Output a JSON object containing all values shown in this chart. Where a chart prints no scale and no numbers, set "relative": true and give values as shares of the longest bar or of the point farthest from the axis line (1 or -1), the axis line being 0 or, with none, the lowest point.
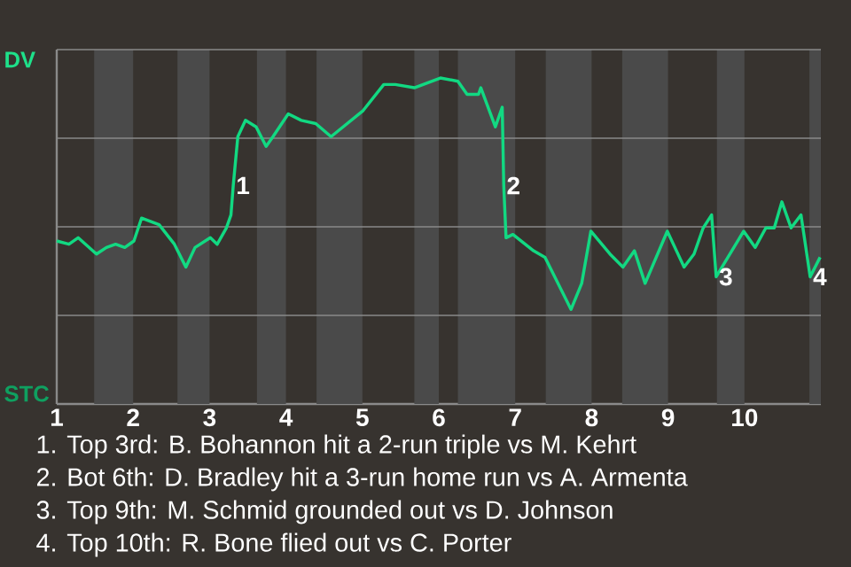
{
  "chart_data": {
    "type": "line",
    "relative": true,
    "x": [
      1.0,
      1.16,
      1.28,
      1.52,
      1.65,
      1.77,
      1.89,
      2.01,
      2.11,
      2.34,
      2.54,
      2.69,
      2.81,
      3.01,
      3.1,
      3.22,
      3.28,
      3.31,
      3.37,
      3.47,
      3.61,
      3.74,
      3.83,
      4.03,
      4.2,
      4.39,
      4.59,
      5.01,
      5.28,
      5.43,
      5.68,
      6.02,
      6.25,
      6.37,
      6.52,
      6.55,
      6.74,
      6.83,
      6.85,
      6.88,
      6.97,
      7.24,
      7.39,
      7.73,
      7.87,
      7.99,
      8.24,
      8.41,
      8.56,
      8.7,
      8.99,
      9.21,
      9.34,
      9.46,
      9.57,
      9.63,
      9.99,
      10.14,
      10.28,
      10.39,
      10.49,
      10.61,
      10.74,
      10.86,
      10.99
    ],
    "series": [
      {
        "color": "#12d982",
        "values": [
          0.5,
          0.49,
          0.51,
          0.46,
          0.48,
          0.49,
          0.48,
          0.5,
          0.57,
          0.55,
          0.49,
          0.42,
          0.48,
          0.51,
          0.49,
          0.54,
          0.58,
          0.67,
          0.82,
          0.87,
          0.85,
          0.79,
          0.82,
          0.89,
          0.87,
          0.86,
          0.82,
          0.9,
          0.98,
          0.98,
          0.97,
          1,
          0.99,
          0.95,
          0.95,
          0.97,
          0.85,
          0.91,
          0.67,
          0.51,
          0.52,
          0.47,
          0.45,
          0.29,
          0.37,
          0.53,
          0.46,
          0.42,
          0.47,
          0.37,
          0.53,
          0.42,
          0.46,
          0.54,
          0.58,
          0.39,
          0.53,
          0.48,
          0.54,
          0.54,
          0.62,
          0.54,
          0.58,
          0.39,
          0.45
        ]
      }
    ],
    "xlim": [
      1,
      11
    ],
    "xticks": [
      1,
      2,
      3,
      4,
      5,
      6,
      7,
      8,
      9,
      10
    ],
    "grid": "y",
    "bands": [
      {
        "axis": "x",
        "from": 1.49,
        "to": 2,
        "color": "#4a4a4a"
      },
      {
        "axis": "x",
        "from": 2.58,
        "to": 3,
        "color": "#4a4a4a"
      },
      {
        "axis": "x",
        "from": 3.62,
        "to": 4,
        "color": "#4a4a4a"
      },
      {
        "axis": "x",
        "from": 4.4,
        "to": 5,
        "color": "#4a4a4a"
      },
      {
        "axis": "x",
        "from": 5.68,
        "to": 6,
        "color": "#4a4a4a"
      },
      {
        "axis": "x",
        "from": 6.25,
        "to": 7,
        "color": "#4a4a4a"
      },
      {
        "axis": "x",
        "from": 7.4,
        "to": 8,
        "color": "#4a4a4a"
      },
      {
        "axis": "x",
        "from": 8.4,
        "to": 9,
        "color": "#4a4a4a"
      },
      {
        "axis": "x",
        "from": 9.64,
        "to": 10,
        "color": "#4a4a4a"
      },
      {
        "axis": "x",
        "from": 10.85,
        "to": 11,
        "color": "#4a4a4a"
      }
    ],
    "annotations": [
      "DV",
      "STC",
      {
        "text": "1",
        "x": 3.31,
        "y": 0.67
      },
      {
        "text": "2",
        "x": 6.85,
        "y": 0.67
      },
      {
        "text": "3",
        "x": 9.63,
        "y": 0.39
      },
      {
        "text": "4",
        "x": 10.86,
        "y": 0.39
      },
      "1. Top 3rd: B. Bohannon hit a 2-run triple vs M. Kehrt",
      "2. Bot 6th: D. Bradley hit a 3-run home run vs A. Armenta",
      "3. Top 9th: M. Schmid grounded out vs D. Johnson",
      "4. Top 10th: R. Bone flied out vs C. Porter"
    ]
  }
}
